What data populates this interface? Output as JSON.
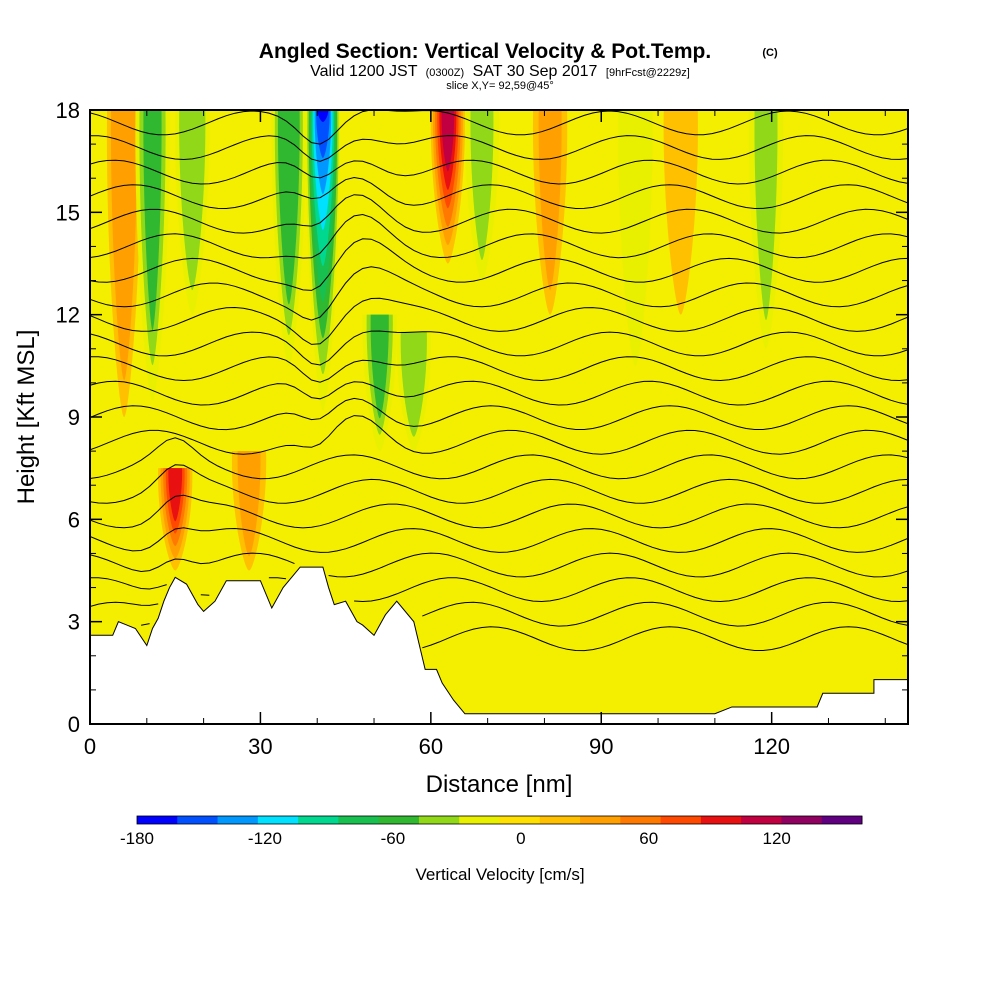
{
  "chart_data": {
    "type": "heatmap",
    "title": "Angled Section: Vertical Velocity & Pot.Temp.",
    "title_units": "(C)",
    "subtitle": {
      "valid": "Valid 1200 JST",
      "utc": "(0300Z)",
      "date": "SAT 30 Sep 2017",
      "forecast": "[9hrFcst@2229z]"
    },
    "slice_label": "slice X,Y= 92,59@45°",
    "xlabel": "Distance [nm]",
    "ylabel": "Height [Kft MSL]",
    "xlim": [
      0,
      144
    ],
    "ylim": [
      0,
      18
    ],
    "x_ticks": [
      "0",
      "30",
      "60",
      "90",
      "120"
    ],
    "y_ticks": [
      "0",
      "3",
      "6",
      "9",
      "12",
      "15",
      "18"
    ],
    "colorbar": {
      "label": "Vertical Velocity [cm/s]",
      "ticks": [
        "-180",
        "-120",
        "-60",
        "0",
        "60",
        "120"
      ],
      "range": [
        -180,
        160
      ],
      "colors": [
        "#0000ff",
        "#0050ff",
        "#0098ff",
        "#00e0ff",
        "#00d890",
        "#18c050",
        "#30b830",
        "#90d818",
        "#e8f000",
        "#ffe000",
        "#ffc000",
        "#ffa000",
        "#ff7800",
        "#ff4800",
        "#e81010",
        "#c00040",
        "#900060",
        "#600080"
      ]
    },
    "updraft_bands": [
      {
        "x": 6,
        "ztop": 18,
        "zbot": 9,
        "w": 40
      },
      {
        "x": 15,
        "ztop": 7.5,
        "zbot": 4.5,
        "w": 90
      },
      {
        "x": 28,
        "ztop": 8,
        "zbot": 4.5,
        "w": 35
      },
      {
        "x": 63,
        "ztop": 18,
        "zbot": 13.5,
        "w": 110
      },
      {
        "x": 81,
        "ztop": 18,
        "zbot": 12,
        "w": 30
      },
      {
        "x": 104,
        "ztop": 18,
        "zbot": 12,
        "w": 25
      }
    ],
    "downdraft_bands": [
      {
        "x": 11,
        "ztop": 18,
        "zbot": 9.5,
        "w": -55
      },
      {
        "x": 18,
        "ztop": 18,
        "zbot": 12,
        "w": -45
      },
      {
        "x": 35,
        "ztop": 18,
        "zbot": 10.5,
        "w": -65
      },
      {
        "x": 41,
        "ztop": 18,
        "zbot": 9.2,
        "w": -165
      },
      {
        "x": 51,
        "ztop": 12,
        "zbot": 8,
        "w": -55
      },
      {
        "x": 57,
        "ztop": 11.5,
        "zbot": 8,
        "w": -40
      },
      {
        "x": 69,
        "ztop": 18,
        "zbot": 13,
        "w": -30
      },
      {
        "x": 96,
        "ztop": 18,
        "zbot": 10.5,
        "w": -28
      },
      {
        "x": 119,
        "ztop": 18,
        "zbot": 11,
        "w": -30
      }
    ],
    "terrain_kft": [
      [
        0,
        2.6
      ],
      [
        4,
        2.6
      ],
      [
        5,
        3.0
      ],
      [
        8,
        2.8
      ],
      [
        10,
        2.3
      ],
      [
        11,
        2.8
      ],
      [
        12,
        3.1
      ],
      [
        13,
        3.6
      ],
      [
        14,
        4.0
      ],
      [
        15,
        4.3
      ],
      [
        17,
        4.1
      ],
      [
        19,
        3.5
      ],
      [
        20,
        3.3
      ],
      [
        22,
        3.6
      ],
      [
        24,
        4.2
      ],
      [
        30,
        4.2
      ],
      [
        32,
        3.4
      ],
      [
        34,
        4.0
      ],
      [
        37,
        4.6
      ],
      [
        41,
        4.6
      ],
      [
        42,
        4.0
      ],
      [
        43,
        3.5
      ],
      [
        45,
        3.6
      ],
      [
        47,
        3.0
      ],
      [
        48,
        2.9
      ],
      [
        50,
        2.6
      ],
      [
        52,
        3.2
      ],
      [
        54,
        3.6
      ],
      [
        57,
        3.0
      ],
      [
        59,
        1.6
      ],
      [
        61,
        1.6
      ],
      [
        62,
        1.2
      ],
      [
        64,
        0.7
      ],
      [
        66,
        0.3
      ],
      [
        68,
        0.3
      ],
      [
        76,
        0.3
      ],
      [
        90,
        0.3
      ],
      [
        110,
        0.3
      ],
      [
        113,
        0.5
      ],
      [
        128,
        0.5
      ],
      [
        129,
        0.9
      ],
      [
        138,
        0.9
      ],
      [
        138,
        1.3
      ],
      [
        144,
        1.3
      ]
    ]
  }
}
